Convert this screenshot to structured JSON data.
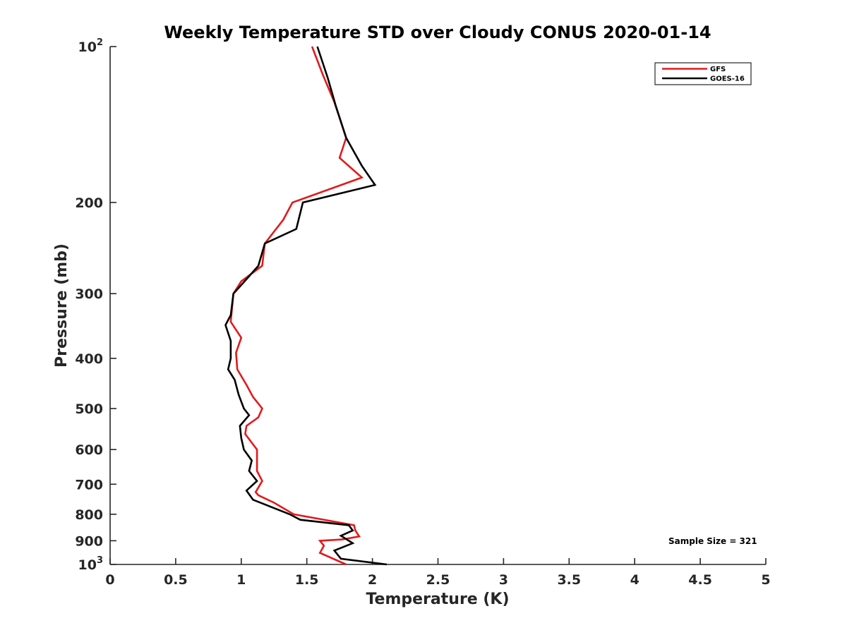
{
  "chart_data": {
    "type": "line",
    "title": "Weekly Temperature STD over Cloudy CONUS 2020-01-14",
    "xlabel": "Temperature (K)",
    "ylabel": "Pressure (mb)",
    "xlim": [
      0,
      5
    ],
    "ylim": [
      100,
      1000
    ],
    "y_scale": "log",
    "y_reversed": true,
    "x_ticks": [
      0,
      0.5,
      1,
      1.5,
      2,
      2.5,
      3,
      3.5,
      4,
      4.5,
      5
    ],
    "x_tick_labels": [
      "0",
      "0.5",
      "1",
      "1.5",
      "2",
      "2.5",
      "3",
      "3.5",
      "4",
      "4.5",
      "5"
    ],
    "y_ticks": [
      {
        "value": 100,
        "base": "10",
        "exp": "2"
      },
      {
        "value": 200,
        "label": "200"
      },
      {
        "value": 300,
        "label": "300"
      },
      {
        "value": 400,
        "label": "400"
      },
      {
        "value": 500,
        "label": "500"
      },
      {
        "value": 600,
        "label": "600"
      },
      {
        "value": 700,
        "label": "700"
      },
      {
        "value": 800,
        "label": "800"
      },
      {
        "value": 900,
        "label": "900"
      },
      {
        "value": 1000,
        "base": "10",
        "exp": "3"
      }
    ],
    "grid": false,
    "legend_position": "top-right",
    "annotation": "Sample Size = 321",
    "series": [
      {
        "name": "GFS",
        "color": "#e31a1c",
        "x": [
          1.54,
          1.62,
          1.71,
          1.8,
          1.75,
          1.92,
          1.39,
          1.32,
          1.18,
          1.16,
          1.0,
          0.94,
          0.92,
          1.0,
          0.96,
          0.97,
          1.04,
          1.09,
          1.16,
          1.13,
          1.04,
          1.03,
          1.12,
          1.12,
          1.12,
          1.16,
          1.11,
          1.13,
          1.25,
          1.4,
          1.86,
          1.87,
          1.9,
          1.77,
          1.6,
          1.63,
          1.6,
          1.8
        ],
        "y": [
          100,
          113,
          128,
          150,
          164,
          179,
          200,
          216,
          240,
          265,
          284,
          300,
          340,
          365,
          390,
          420,
          450,
          475,
          500,
          520,
          540,
          560,
          600,
          620,
          660,
          690,
          725,
          735,
          760,
          800,
          840,
          860,
          883,
          895,
          900,
          920,
          950,
          1000
        ]
      },
      {
        "name": "GOES-16",
        "color": "#000000",
        "x": [
          1.58,
          1.66,
          1.72,
          1.8,
          1.92,
          2.02,
          1.47,
          1.42,
          1.18,
          1.13,
          1.02,
          0.94,
          0.92,
          0.88,
          0.92,
          0.92,
          0.9,
          0.95,
          0.98,
          1.02,
          1.06,
          0.99,
          1.0,
          1.02,
          1.08,
          1.06,
          1.12,
          1.04,
          1.09,
          1.37,
          1.45,
          1.82,
          1.85,
          1.76,
          1.85,
          1.71,
          1.76,
          2.11
        ],
        "y": [
          100,
          115,
          130,
          150,
          170,
          185,
          200,
          225,
          240,
          265,
          285,
          300,
          330,
          345,
          370,
          400,
          420,
          440,
          470,
          500,
          515,
          540,
          570,
          600,
          630,
          660,
          690,
          720,
          750,
          800,
          820,
          840,
          860,
          880,
          910,
          940,
          975,
          1000
        ]
      }
    ]
  }
}
